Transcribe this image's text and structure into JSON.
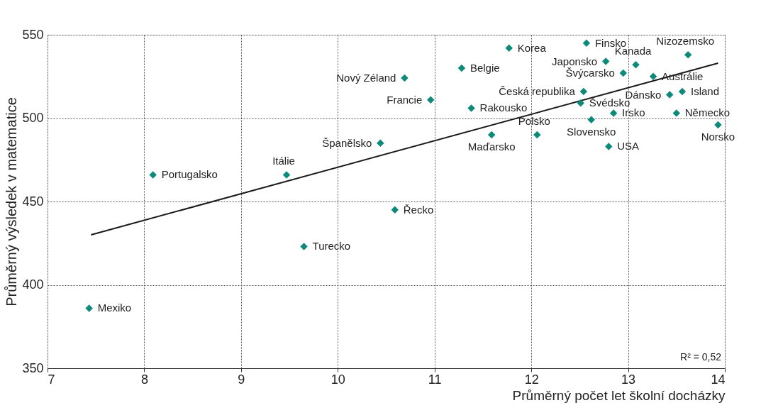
{
  "chart_data": {
    "type": "scatter",
    "xlabel": "Průměrný počet let školní docházky",
    "ylabel": "Průměrný výsledek v matematice",
    "xlim": [
      7,
      14
    ],
    "xticks": [
      7,
      8,
      9,
      10,
      11,
      12,
      13,
      14
    ],
    "ylim": [
      350,
      550
    ],
    "yticks": [
      350,
      400,
      450,
      500,
      550
    ],
    "grid": true,
    "marker": "diamond",
    "series": [
      {
        "color": "#0f8a7a",
        "x": [
          7.43,
          8.09,
          9.47,
          9.65,
          10.59,
          10.44,
          10.69,
          10.96,
          11.28,
          11.38,
          11.59,
          11.77,
          12.06,
          12.57,
          12.54,
          12.51,
          12.62,
          12.85,
          12.8,
          12.77,
          12.95,
          13.08,
          13.26,
          13.43,
          13.56,
          13.5,
          13.62,
          13.93
        ],
        "values": [
          386,
          466,
          466,
          423,
          445,
          485,
          524,
          511,
          530,
          506,
          490,
          542,
          490,
          545,
          516,
          509,
          499,
          503,
          483,
          534,
          527,
          532,
          525,
          514,
          516,
          503,
          538,
          496
        ]
      },
      {
        "type": "line",
        "color": "#1a1a1a",
        "line_style": "solid",
        "marker": "none",
        "x": [
          7.45,
          13.93
        ],
        "values": [
          430,
          533
        ]
      }
    ],
    "annotations": [
      {
        "text": "Mexiko",
        "x": 7.43,
        "y": 386
      },
      {
        "text": "Portugalsko",
        "x": 8.09,
        "y": 466
      },
      {
        "text": "Itálie",
        "x": 9.47,
        "y": 466
      },
      {
        "text": "Turecko",
        "x": 9.65,
        "y": 423
      },
      {
        "text": "Řecko",
        "x": 10.59,
        "y": 445
      },
      {
        "text": "Španělsko",
        "x": 10.44,
        "y": 485
      },
      {
        "text": "Nový Zéland",
        "x": 10.69,
        "y": 524
      },
      {
        "text": "Francie",
        "x": 10.96,
        "y": 511
      },
      {
        "text": "Belgie",
        "x": 11.28,
        "y": 530
      },
      {
        "text": "Rakousko",
        "x": 11.38,
        "y": 506
      },
      {
        "text": "Maďarsko",
        "x": 11.59,
        "y": 490
      },
      {
        "text": "Korea",
        "x": 11.77,
        "y": 542
      },
      {
        "text": "Polsko",
        "x": 12.06,
        "y": 490
      },
      {
        "text": "Finsko",
        "x": 12.57,
        "y": 545
      },
      {
        "text": "Česká republika",
        "x": 12.54,
        "y": 516
      },
      {
        "text": "Švédsko",
        "x": 12.51,
        "y": 509
      },
      {
        "text": "Slovensko",
        "x": 12.62,
        "y": 499
      },
      {
        "text": "Irsko",
        "x": 12.85,
        "y": 503
      },
      {
        "text": "USA",
        "x": 12.8,
        "y": 483
      },
      {
        "text": "Japonsko",
        "x": 12.77,
        "y": 534
      },
      {
        "text": "Švýcarsko",
        "x": 12.95,
        "y": 527
      },
      {
        "text": "Kanada",
        "x": 13.08,
        "y": 532
      },
      {
        "text": "Austrálie",
        "x": 13.26,
        "y": 525
      },
      {
        "text": "Dánsko",
        "x": 13.43,
        "y": 514
      },
      {
        "text": "Island",
        "x": 13.56,
        "y": 516
      },
      {
        "text": "Německo",
        "x": 13.5,
        "y": 503
      },
      {
        "text": "Nizozemsko",
        "x": 13.62,
        "y": 538
      },
      {
        "text": "Norsko",
        "x": 13.93,
        "y": 496
      },
      "R² = 0,52"
    ]
  }
}
